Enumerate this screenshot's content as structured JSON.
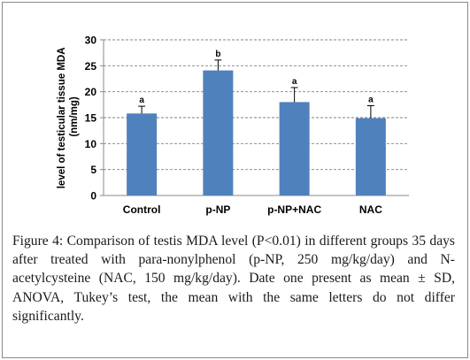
{
  "chart_data": {
    "type": "bar",
    "categories": [
      "Control",
      "p-NP",
      "p-NP+NAC",
      "NAC"
    ],
    "values": [
      15.8,
      24.1,
      18.0,
      14.9
    ],
    "errors": [
      1.4,
      2.0,
      2.8,
      2.4
    ],
    "significance_letters": [
      "a",
      "b",
      "a",
      "a"
    ],
    "ylabel": "level of testicular tissue MDA (nm/mg)",
    "ylabel_line1": "level of testicular tissue MDA",
    "ylabel_line2": "(nm/mg)",
    "ylim": [
      0,
      30
    ],
    "yticks": [
      0,
      5,
      10,
      15,
      20,
      25,
      30
    ],
    "grid": "dashed horizontal",
    "legend": "none"
  },
  "colors": {
    "bar": "#4f81bd",
    "error_bar": "#000000",
    "grid": "#808080",
    "axis": "#888888",
    "text": "#000000"
  },
  "caption": {
    "label": "Figure 4:",
    "text": " Comparison of testis MDA level (P<0.01) in different groups 35 days after treated with para-nonylphenol (p-NP, 250 mg/kg/day) and N-acetylcysteine (NAC, 150 mg/kg/day). Date one present as mean ± SD, ANOVA, Tukey’s test, the mean with the same letters do not differ significantly."
  }
}
